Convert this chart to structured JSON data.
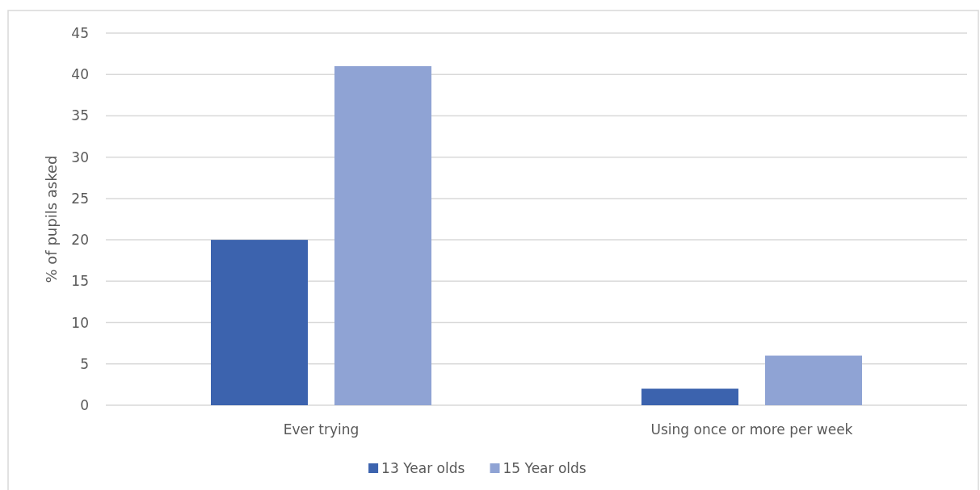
{
  "chart_data": {
    "type": "bar",
    "ylabel": "% of pupils asked",
    "categories": [
      "Ever trying",
      "Using once or more per week"
    ],
    "series": [
      {
        "name": "13 Year olds",
        "color": "#3c63ae",
        "values": [
          20,
          2
        ]
      },
      {
        "name": "15 Year olds",
        "color": "#8fa3d4",
        "values": [
          41,
          6
        ]
      }
    ],
    "ylim": [
      0,
      45
    ],
    "yticks": [
      0,
      5,
      10,
      15,
      20,
      25,
      30,
      35,
      40,
      45
    ],
    "grid": "y",
    "legend": "bottom"
  }
}
